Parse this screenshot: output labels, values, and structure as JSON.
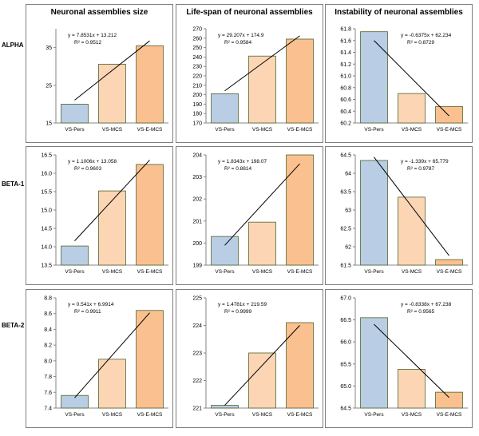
{
  "row_labels": [
    "ALPHA",
    "BETA-1",
    "BETA-2"
  ],
  "colors": {
    "bar_fills": [
      "#b9cde5",
      "#fcd5b5",
      "#fac090"
    ],
    "bar_strokes": [
      "#4f6228",
      "#4f6228",
      "#4f6228"
    ],
    "trend": "#000000",
    "axis": "#868686"
  },
  "chart_data": [
    {
      "type": "bar",
      "title": "Neuronal assemblies size",
      "categories": [
        "VS-Pers",
        "VS-MCS",
        "VS-E-MCS"
      ],
      "values": [
        20.0,
        30.6,
        35.5
      ],
      "ylim": [
        15,
        40
      ],
      "yticks": [
        "15",
        "25",
        "35"
      ],
      "ytick_values": [
        15,
        25,
        35
      ],
      "equation": "y = 7.8531x + 13.212",
      "r2": "R² = 0.9512",
      "trendline": [
        21.07,
        36.78
      ],
      "xlabel": "",
      "ylabel": ""
    },
    {
      "type": "bar",
      "title": "Life-span of neuronal assemblies",
      "categories": [
        "VS-Pers",
        "VS-MCS",
        "VS-E-MCS"
      ],
      "values": [
        201,
        241,
        259
      ],
      "ylim": [
        170,
        270
      ],
      "yticks": [
        "170",
        "180",
        "190",
        "200",
        "210",
        "220",
        "230",
        "240",
        "250",
        "260",
        "270"
      ],
      "ytick_values": [
        170,
        180,
        190,
        200,
        210,
        220,
        230,
        240,
        250,
        260,
        270
      ],
      "equation": "y = 29.207x + 174.9",
      "r2": "R² = 0.9584",
      "trendline": [
        204.1,
        262.5
      ],
      "xlabel": "",
      "ylabel": ""
    },
    {
      "type": "bar",
      "title": "Instability of neuronal assemblies",
      "categories": [
        "VS-Pers",
        "VS-MCS",
        "VS-E-MCS"
      ],
      "values": [
        61.75,
        60.7,
        60.48
      ],
      "ylim": [
        60.2,
        61.8
      ],
      "yticks": [
        "60.2",
        "60.4",
        "60.6",
        "60.8",
        "61.0",
        "61.2",
        "61.4",
        "61.6",
        "61.8"
      ],
      "ytick_values": [
        60.2,
        60.4,
        60.6,
        60.8,
        61.0,
        61.2,
        61.4,
        61.6,
        61.8
      ],
      "equation": "y = -0.6375x + 62.234",
      "r2": "R² = 0.8729",
      "trendline": [
        61.6,
        60.32
      ],
      "xlabel": "",
      "ylabel": ""
    },
    {
      "type": "bar",
      "title": "",
      "categories": [
        "VS-Pers",
        "VS-MCS",
        "VS-E-MCS"
      ],
      "values": [
        14.02,
        15.52,
        16.24
      ],
      "ylim": [
        13.5,
        16.5
      ],
      "yticks": [
        "13.5",
        "14.0",
        "14.5",
        "15.0",
        "15.5",
        "16.0",
        "16.5"
      ],
      "ytick_values": [
        13.5,
        14.0,
        14.5,
        15.0,
        15.5,
        16.0,
        16.5
      ],
      "equation": "y = 1.1006x + 13.058",
      "r2": "R² = 0.9603",
      "trendline": [
        14.16,
        16.36
      ],
      "xlabel": "",
      "ylabel": ""
    },
    {
      "type": "bar",
      "title": "",
      "categories": [
        "VS-Pers",
        "VS-MCS",
        "VS-E-MCS"
      ],
      "values": [
        200.3,
        200.95,
        204.0
      ],
      "ylim": [
        199,
        204
      ],
      "yticks": [
        "199",
        "200",
        "201",
        "202",
        "203",
        "204"
      ],
      "ytick_values": [
        199,
        200,
        201,
        202,
        203,
        204
      ],
      "equation": "y = 1.8343x + 198.07",
      "r2": "R² = 0.8814",
      "trendline": [
        199.9,
        203.6
      ],
      "xlabel": "",
      "ylabel": ""
    },
    {
      "type": "bar",
      "title": "",
      "categories": [
        "VS-Pers",
        "VS-MCS",
        "VS-E-MCS"
      ],
      "values": [
        64.35,
        63.35,
        61.65
      ],
      "ylim": [
        61.5,
        64.5
      ],
      "yticks": [
        "61.5",
        "62",
        "62.5",
        "63",
        "63.5",
        "64",
        "64.5"
      ],
      "ytick_values": [
        61.5,
        62.0,
        62.5,
        63.0,
        63.5,
        64.0,
        64.5
      ],
      "equation": "y = -1.339x + 65.779",
      "r2": "R² = 0.9787",
      "trendline": [
        64.44,
        61.76
      ],
      "xlabel": "",
      "ylabel": ""
    },
    {
      "type": "bar",
      "title": "",
      "categories": [
        "VS-Pers",
        "VS-MCS",
        "VS-E-MCS"
      ],
      "values": [
        7.56,
        8.02,
        8.64
      ],
      "ylim": [
        7.4,
        8.8
      ],
      "yticks": [
        "7.4",
        "7.6",
        "7.8",
        "8.0",
        "8.2",
        "8.4",
        "8.6",
        "8.8"
      ],
      "ytick_values": [
        7.4,
        7.6,
        7.8,
        8.0,
        8.2,
        8.4,
        8.6,
        8.8
      ],
      "equation": "y = 0.541x + 6.9914",
      "r2": "R² = 0.9911",
      "trendline": [
        7.53,
        8.61
      ],
      "xlabel": "",
      "ylabel": ""
    },
    {
      "type": "bar",
      "title": "",
      "categories": [
        "VS-Pers",
        "VS-MCS",
        "VS-E-MCS"
      ],
      "values": [
        221.1,
        223.0,
        224.1
      ],
      "ylim": [
        221,
        225
      ],
      "yticks": [
        "221",
        "222",
        "223",
        "224",
        "225"
      ],
      "ytick_values": [
        221,
        222,
        223,
        224,
        225
      ],
      "equation": "y = 1.4781x + 219.59",
      "r2": "R² = 0.9999",
      "trendline": [
        221.1,
        224.0
      ],
      "xlabel": "",
      "ylabel": ""
    },
    {
      "type": "bar",
      "title": "",
      "categories": [
        "VS-Pers",
        "VS-MCS",
        "VS-E-MCS"
      ],
      "values": [
        66.55,
        65.38,
        64.86
      ],
      "ylim": [
        64.5,
        67.0
      ],
      "yticks": [
        "64.5",
        "65.0",
        "65.5",
        "66.0",
        "66.5",
        "67.0"
      ],
      "ytick_values": [
        64.5,
        65.0,
        65.5,
        66.0,
        66.5,
        67.0
      ],
      "equation": "y = -0.8338x + 67.238",
      "r2": "R² = 0.9565",
      "trendline": [
        66.4,
        64.74
      ],
      "xlabel": "",
      "ylabel": ""
    }
  ]
}
